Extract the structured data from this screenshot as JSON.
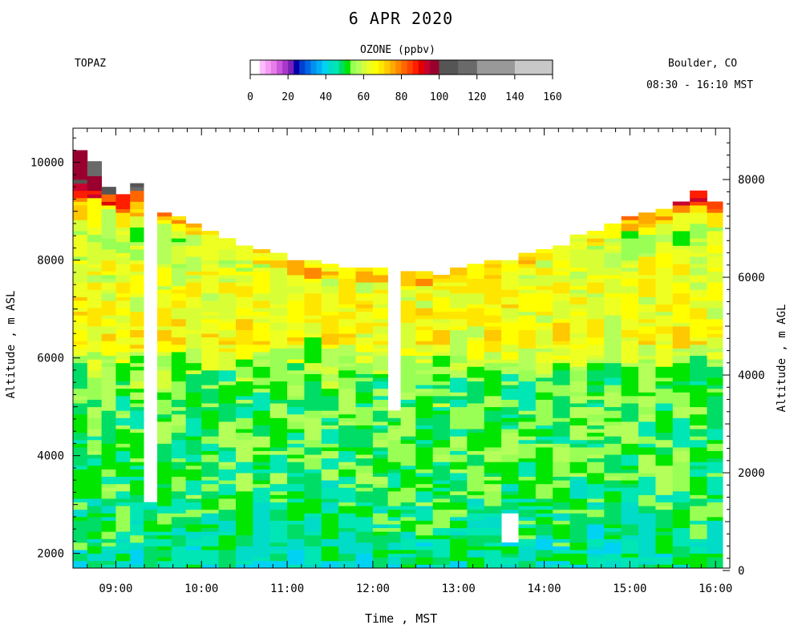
{
  "header": {
    "title": "6 APR 2020",
    "station": "TOPAZ",
    "location": "Boulder, CO",
    "time_range": "08:30 - 16:10 MST"
  },
  "colorbar": {
    "title": "OZONE (ppbv)",
    "tick_labels": [
      "0",
      "20",
      "40",
      "60",
      "80",
      "100",
      "120",
      "140",
      "160"
    ],
    "ticks": [
      0,
      20,
      40,
      60,
      80,
      100,
      120,
      140,
      160
    ],
    "range": [
      0,
      160
    ],
    "bins": [
      {
        "from": 0,
        "to": 5,
        "color": "#ffffff"
      },
      {
        "from": 5,
        "to": 8,
        "color": "#ffbbff"
      },
      {
        "from": 8,
        "to": 11,
        "color": "#f49cf4"
      },
      {
        "from": 11,
        "to": 14,
        "color": "#e67ce6"
      },
      {
        "from": 14,
        "to": 17,
        "color": "#cc55dd"
      },
      {
        "from": 17,
        "to": 20,
        "color": "#a838cc"
      },
      {
        "from": 20,
        "to": 23,
        "color": "#7720b8"
      },
      {
        "from": 23,
        "to": 26,
        "color": "#0000aa"
      },
      {
        "from": 26,
        "to": 29,
        "color": "#0040d0"
      },
      {
        "from": 29,
        "to": 32,
        "color": "#0066e6"
      },
      {
        "from": 32,
        "to": 35,
        "color": "#0090f0"
      },
      {
        "from": 35,
        "to": 38,
        "color": "#00aef8"
      },
      {
        "from": 38,
        "to": 41,
        "color": "#00d2f4"
      },
      {
        "from": 41,
        "to": 44,
        "color": "#00dcc8"
      },
      {
        "from": 44,
        "to": 47,
        "color": "#00e6b4"
      },
      {
        "from": 47,
        "to": 50,
        "color": "#00dd66"
      },
      {
        "from": 50,
        "to": 53,
        "color": "#00e600"
      },
      {
        "from": 53,
        "to": 56,
        "color": "#99ff55"
      },
      {
        "from": 56,
        "to": 59,
        "color": "#b4ff5a"
      },
      {
        "from": 59,
        "to": 62,
        "color": "#d8ff36"
      },
      {
        "from": 62,
        "to": 65,
        "color": "#eeff22"
      },
      {
        "from": 65,
        "to": 68,
        "color": "#ffff00"
      },
      {
        "from": 68,
        "to": 71,
        "color": "#ffe600"
      },
      {
        "from": 71,
        "to": 74,
        "color": "#ffc800"
      },
      {
        "from": 74,
        "to": 77,
        "color": "#ffaa00"
      },
      {
        "from": 77,
        "to": 80,
        "color": "#ff8800"
      },
      {
        "from": 80,
        "to": 83,
        "color": "#ff6600"
      },
      {
        "from": 83,
        "to": 86,
        "color": "#ff4400"
      },
      {
        "from": 86,
        "to": 89,
        "color": "#ff1e00"
      },
      {
        "from": 89,
        "to": 92,
        "color": "#e00000"
      },
      {
        "from": 92,
        "to": 95,
        "color": "#c8002e"
      },
      {
        "from": 95,
        "to": 100,
        "color": "#99002e"
      },
      {
        "from": 100,
        "to": 110,
        "color": "#555555"
      },
      {
        "from": 110,
        "to": 120,
        "color": "#6a6a6a"
      },
      {
        "from": 120,
        "to": 140,
        "color": "#999999"
      },
      {
        "from": 140,
        "to": 160,
        "color": "#c8c8c8"
      }
    ]
  },
  "axes": {
    "x_label": "Time , MST",
    "y_left_label": "Altitude , m ASL",
    "y_right_label": "Altitude , m AGL",
    "x_ticks": [
      "09:00",
      "10:00",
      "11:00",
      "12:00",
      "13:00",
      "14:00",
      "15:00",
      "16:00"
    ],
    "y_left_ticks": [
      "2000",
      "4000",
      "6000",
      "8000",
      "10000"
    ],
    "y_right_ticks": [
      "0",
      "2000",
      "4000",
      "6000",
      "8000"
    ]
  },
  "chart_data": {
    "type": "heatmap",
    "title": "6 APR 2020",
    "variable": "OZONE (ppbv)",
    "xlabel": "Time , MST",
    "ylabel": "Altitude , m ASL",
    "y2label": "Altitude , m AGL",
    "x_range": [
      "08:30",
      "16:10"
    ],
    "x_ticks": [
      "09:00",
      "10:00",
      "11:00",
      "12:00",
      "13:00",
      "14:00",
      "15:00",
      "16:00"
    ],
    "ylim": [
      1700,
      10700
    ],
    "y_ticks": [
      2000,
      4000,
      6000,
      8000,
      10000
    ],
    "y2_ticks": [
      0,
      2000,
      4000,
      6000,
      8000
    ],
    "y2_offset_m": 1650,
    "columns": [
      {
        "time": "08:35",
        "top_m": 10200
      },
      {
        "time": "08:45",
        "top_m": 10000
      },
      {
        "time": "08:55",
        "top_m": 9450
      },
      {
        "time": "09:05",
        "top_m": 9300
      },
      {
        "time": "09:15",
        "top_m": 9550
      },
      {
        "time": "09:24",
        "top_m": 8900,
        "gap_to_m": 3000
      },
      {
        "time": "09:34",
        "top_m": 8950
      },
      {
        "time": "09:44",
        "top_m": 8850
      },
      {
        "time": "09:54",
        "top_m": 8700
      },
      {
        "time": "10:06",
        "top_m": 8550
      },
      {
        "time": "10:18",
        "top_m": 8400
      },
      {
        "time": "10:30",
        "top_m": 8300
      },
      {
        "time": "10:42",
        "top_m": 8200
      },
      {
        "time": "10:54",
        "top_m": 8100
      },
      {
        "time": "11:06",
        "top_m": 8000
      },
      {
        "time": "11:18",
        "top_m": 7950
      },
      {
        "time": "11:30",
        "top_m": 7900
      },
      {
        "time": "11:42",
        "top_m": 7850
      },
      {
        "time": "11:54",
        "top_m": 7800
      },
      {
        "time": "12:06",
        "top_m": 7800
      },
      {
        "time": "12:15",
        "top_m": 7800,
        "gap_to_m": 4900
      },
      {
        "time": "12:24",
        "top_m": 7750
      },
      {
        "time": "12:36",
        "top_m": 7750
      },
      {
        "time": "12:48",
        "top_m": 7700
      },
      {
        "time": "13:00",
        "top_m": 7850
      },
      {
        "time": "13:12",
        "top_m": 7900
      },
      {
        "time": "13:24",
        "top_m": 7950
      },
      {
        "time": "13:36",
        "top_m": 8000,
        "gap_to_m": 2200,
        "gap_from_m": 2800
      },
      {
        "time": "13:48",
        "top_m": 8100
      },
      {
        "time": "14:00",
        "top_m": 8200
      },
      {
        "time": "14:12",
        "top_m": 8300
      },
      {
        "time": "14:24",
        "top_m": 8500
      },
      {
        "time": "14:36",
        "top_m": 8600
      },
      {
        "time": "14:48",
        "top_m": 8750
      },
      {
        "time": "15:00",
        "top_m": 8900
      },
      {
        "time": "15:12",
        "top_m": 8950
      },
      {
        "time": "15:24",
        "top_m": 9050
      },
      {
        "time": "15:36",
        "top_m": 9200
      },
      {
        "time": "15:48",
        "top_m": 9400
      },
      {
        "time": "16:00",
        "top_m": 9200
      }
    ],
    "profile_ppbv": [
      {
        "alt_m": 1800,
        "ppbv": 45
      },
      {
        "alt_m": 3000,
        "ppbv": 50
      },
      {
        "alt_m": 4500,
        "ppbv": 52
      },
      {
        "alt_m": 5600,
        "ppbv": 53
      },
      {
        "alt_m": 6300,
        "ppbv": 66
      },
      {
        "alt_m": 7400,
        "ppbv": 64
      },
      {
        "alt_m": 8500,
        "ppbv": 58
      },
      {
        "alt_m": 9200,
        "ppbv": 75
      },
      {
        "alt_m": 9400,
        "ppbv": 95
      }
    ]
  }
}
